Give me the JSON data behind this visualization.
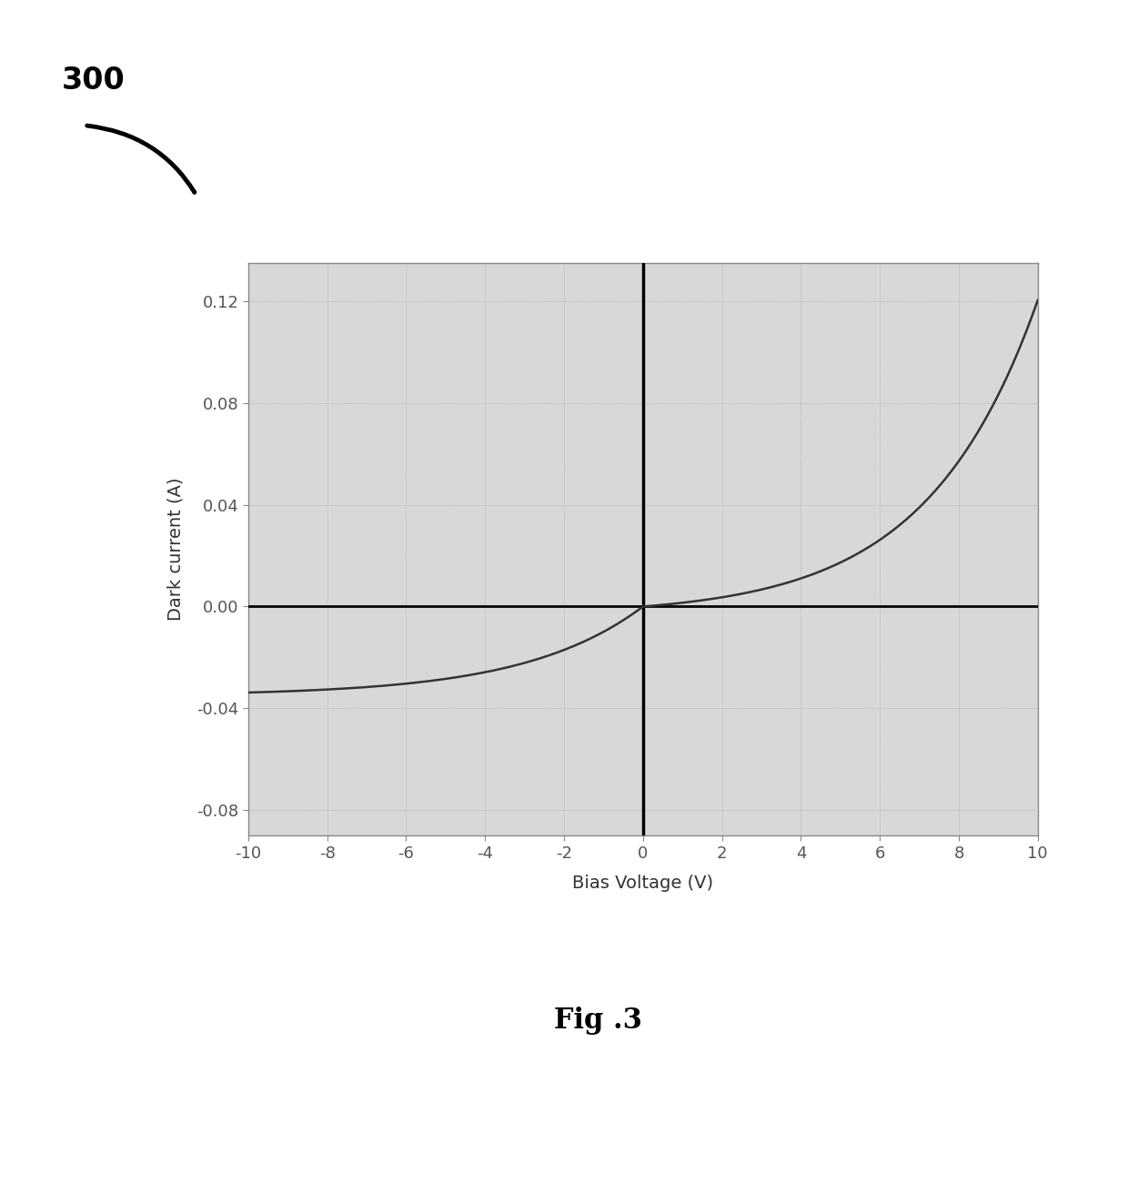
{
  "title": "Fig .3",
  "xlabel": "Bias Voltage (V)",
  "ylabel": "Dark current (A)",
  "xlim": [
    -10,
    10
  ],
  "ylim": [
    -0.09,
    0.14
  ],
  "xticks": [
    -10,
    -8,
    -6,
    -4,
    -2,
    0,
    2,
    4,
    6,
    8,
    10
  ],
  "yticks": [
    -0.08,
    -0.04,
    0.0,
    0.04,
    0.08,
    0.12
  ],
  "label_300": "300",
  "line_color": "#333333",
  "grid_color": "#aaaaaa",
  "bg_color": "#ffffff",
  "plot_bg_color": "#d8d8d8",
  "diode_Is": 0.001,
  "diode_n": 2.5,
  "diode_Vt": 0.5,
  "reverse_sat": -0.035
}
